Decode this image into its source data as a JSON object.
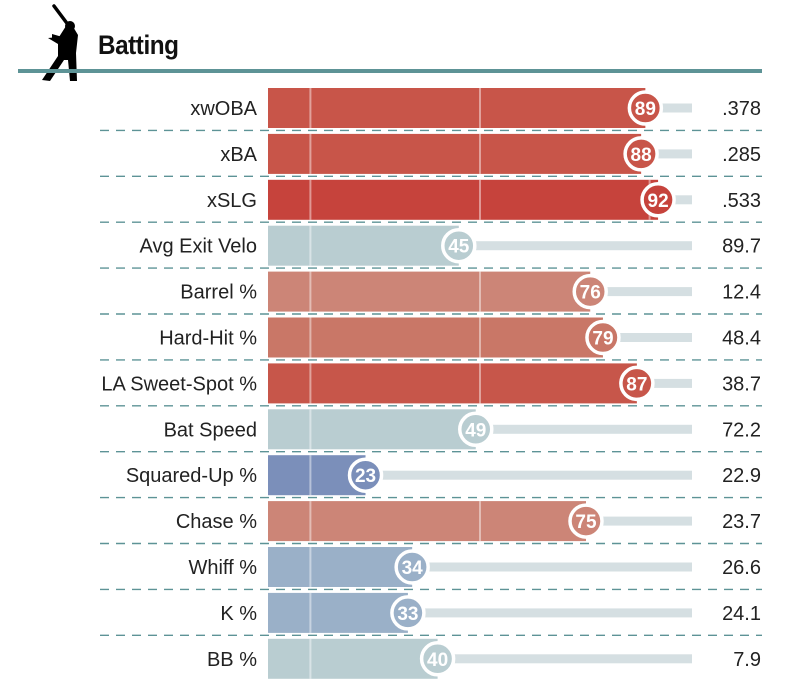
{
  "section": {
    "title": "Batting",
    "icon": "batter-silhouette-icon"
  },
  "chart_data": {
    "type": "bar",
    "orientation": "horizontal",
    "xlim": [
      0,
      100
    ],
    "categories": [
      "xwOBA",
      "xBA",
      "xSLG",
      "Avg Exit Velo",
      "Barrel %",
      "Hard-Hit %",
      "LA Sweet-Spot %",
      "Bat Speed",
      "Squared-Up %",
      "Chase %",
      "Whiff %",
      "K %",
      "BB %"
    ],
    "percentiles": [
      89,
      88,
      92,
      45,
      76,
      79,
      87,
      49,
      23,
      75,
      34,
      33,
      40
    ],
    "values": [
      ".378",
      ".285",
      ".533",
      "89.7",
      "12.4",
      "48.4",
      "38.7",
      "72.2",
      "22.9",
      "23.7",
      "26.6",
      "24.1",
      "7.9"
    ],
    "colors": [
      "#c85549",
      "#c85549",
      "#c6433c",
      "#b9cdd1",
      "#cc8577",
      "#c97767",
      "#c7564a",
      "#b9cdd1",
      "#7b8fba",
      "#cc8577",
      "#9ab0c8",
      "#9ab0c8",
      "#b9cdd1"
    ],
    "track_color": "#d5dfe2",
    "reference_lines": [
      10,
      50,
      90
    ],
    "grid": false
  }
}
